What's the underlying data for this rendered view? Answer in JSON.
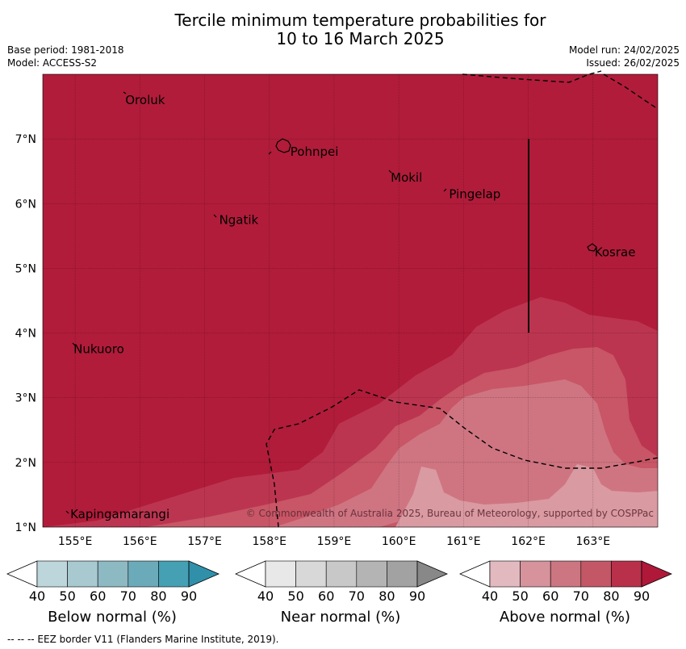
{
  "title_line1": "Tercile minimum temperature probabilities for",
  "title_line2": "10 to 16 March 2025",
  "base_period": "Base period: 1981-2018",
  "model": "Model: ACCESS-S2",
  "model_run": "Model run: 24/02/2025",
  "issued": "Issued: 26/02/2025",
  "copyright": "© Commonwealth of Australia 2025, Bureau of Meteorology, supported by COSPPac",
  "footer": "--  --  -- EEZ border V11 (Flanders Marine Institute, 2019).",
  "map": {
    "lon_range": [
      154.5,
      164.0
    ],
    "lat_range": [
      1.0,
      8.0
    ],
    "lon_ticks": [
      155,
      156,
      157,
      158,
      159,
      160,
      161,
      162,
      163
    ],
    "lon_tick_labels": [
      "155°E",
      "156°E",
      "157°E",
      "158°E",
      "159°E",
      "160°E",
      "161°E",
      "162°E",
      "163°E"
    ],
    "lat_ticks": [
      1,
      2,
      3,
      4,
      5,
      6,
      7
    ],
    "lat_tick_labels": [
      "1°N",
      "2°N",
      "3°N",
      "4°N",
      "5°N",
      "6°N",
      "7°N"
    ],
    "places": [
      {
        "name": "Oroluk",
        "lon": 155.75,
        "lat": 7.6
      },
      {
        "name": "Pohnpei",
        "lon": 158.3,
        "lat": 6.8
      },
      {
        "name": "Mokil",
        "lon": 159.85,
        "lat": 6.4
      },
      {
        "name": "Pingelap",
        "lon": 160.75,
        "lat": 6.15
      },
      {
        "name": "Ngatik",
        "lon": 157.2,
        "lat": 5.75
      },
      {
        "name": "Kosrae",
        "lon": 163.0,
        "lat": 5.25
      },
      {
        "name": "Nukuoro",
        "lon": 154.95,
        "lat": 3.75
      },
      {
        "name": "Kapingamarangi",
        "lon": 154.9,
        "lat": 1.2
      }
    ],
    "colors": {
      "above_90": "#b11c3a",
      "above_80": "#bc3550",
      "above_70": "#c85666",
      "above_60": "#cf7582",
      "above_50": "#da9aa2"
    }
  },
  "colorbars": [
    {
      "name": "Below normal (%)",
      "ticks": [
        "40",
        "50",
        "60",
        "70",
        "80",
        "90"
      ],
      "colors": [
        "#ffffff",
        "#bcd6dc",
        "#a7c9cf",
        "#8db9c2",
        "#6babb9",
        "#45a0b3",
        "#3090aa"
      ]
    },
    {
      "name": "Near normal (%)",
      "ticks": [
        "40",
        "50",
        "60",
        "70",
        "80",
        "90"
      ],
      "colors": [
        "#ffffff",
        "#e8e8e8",
        "#d8d8d8",
        "#c8c8c8",
        "#b4b4b4",
        "#a2a2a2",
        "#888888"
      ]
    },
    {
      "name": "Above normal (%)",
      "ticks": [
        "40",
        "50",
        "60",
        "70",
        "80",
        "90"
      ],
      "colors": [
        "#ffffff",
        "#e2b9bf",
        "#d6939c",
        "#cb7681",
        "#c35766",
        "#b9304a",
        "#b0183a"
      ]
    }
  ]
}
